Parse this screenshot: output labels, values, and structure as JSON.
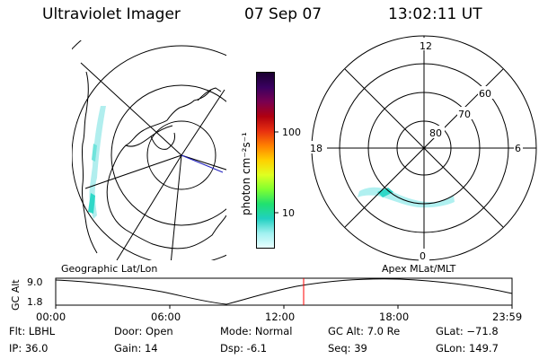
{
  "header": {
    "title": "Ultraviolet Imager",
    "date": "07 Sep 07",
    "time": "13:02:11 UT"
  },
  "colorbar": {
    "unit_label": "photon cm⁻²s⁻¹",
    "ticks": [
      "100",
      "10"
    ],
    "colors": [
      "#1a0030",
      "#3a0060",
      "#7a0050",
      "#b00010",
      "#e83010",
      "#ff8000",
      "#ffd000",
      "#e0ff20",
      "#80ff30",
      "#20e070",
      "#20d0c0",
      "#a0f0f0",
      "#e8ffff"
    ]
  },
  "geo_map": {
    "label": "Geographic Lat/Lon"
  },
  "polar_plot": {
    "label": "Apex  MLat/MLT",
    "lat_labels": [
      "80",
      "70",
      "60"
    ],
    "mlt_labels": {
      "top": "12",
      "left": "18",
      "right": "6",
      "bottom": "0"
    }
  },
  "altitude_plot": {
    "ylabel": "GC Alt",
    "yticks": [
      "9.0",
      "1.8"
    ],
    "xticks": [
      "00:00",
      "06:00",
      "12:00",
      "18:00",
      "23:59"
    ],
    "marker_color": "#ff0000"
  },
  "info": {
    "flt": "Flt: LBHL",
    "ip": "IP: 36.0",
    "door": "Door: Open",
    "gain": "Gain: 14",
    "mode": "Mode: Normal",
    "dsp": "Dsp:    -6.1",
    "gcalt": "GC Alt: 7.0 Re",
    "seq": "Seq: 39",
    "glat": "GLat: −71.8",
    "glon": "GLon: 149.7"
  }
}
